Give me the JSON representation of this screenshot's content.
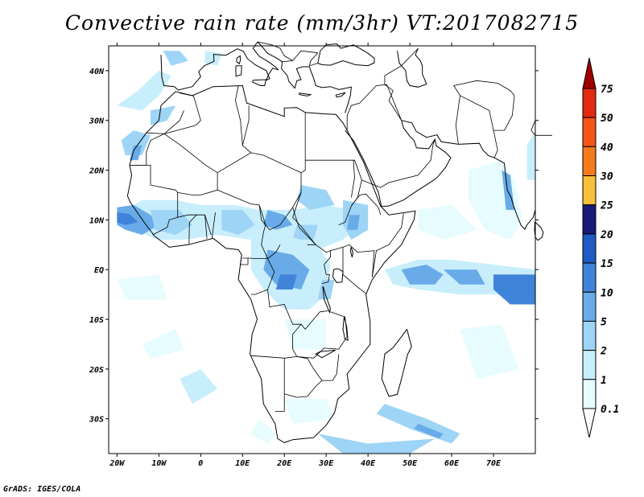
{
  "title": "Convective rain rate (mm/3hr) VT:2017082715",
  "footer": "GrADS: IGES/COLA",
  "map": {
    "lon_range": [
      -22,
      80
    ],
    "lat_range": [
      -37,
      45
    ],
    "lat_ticks": [
      {
        "value": 40,
        "label": "40N"
      },
      {
        "value": 30,
        "label": "30N"
      },
      {
        "value": 20,
        "label": "20N"
      },
      {
        "value": 10,
        "label": "10N"
      },
      {
        "value": 0,
        "label": "EQ"
      },
      {
        "value": -10,
        "label": "10S"
      },
      {
        "value": -20,
        "label": "20S"
      },
      {
        "value": -30,
        "label": "30S"
      }
    ],
    "lon_ticks": [
      {
        "value": -20,
        "label": "20W"
      },
      {
        "value": -10,
        "label": "10W"
      },
      {
        "value": 0,
        "label": "0"
      },
      {
        "value": 10,
        "label": "10E"
      },
      {
        "value": 20,
        "label": "20E"
      },
      {
        "value": 30,
        "label": "30E"
      },
      {
        "value": 40,
        "label": "40E"
      },
      {
        "value": 50,
        "label": "50E"
      },
      {
        "value": 60,
        "label": "60E"
      },
      {
        "value": 70,
        "label": "70E"
      }
    ]
  },
  "colorbar": {
    "levels": [
      {
        "label": "0.1",
        "color": "#e6fcff"
      },
      {
        "label": "1",
        "color": "#c8eefc"
      },
      {
        "label": "2",
        "color": "#9ed4f5"
      },
      {
        "label": "5",
        "color": "#68abe8"
      },
      {
        "label": "10",
        "color": "#3f84d8"
      },
      {
        "label": "15",
        "color": "#1e5cc4"
      },
      {
        "label": "20",
        "color": "#1a1a78"
      },
      {
        "label": "25",
        "color": "#f7c03a"
      },
      {
        "label": "30",
        "color": "#f47b1e"
      },
      {
        "label": "40",
        "color": "#f55616"
      },
      {
        "label": "50",
        "color": "#e32a10"
      },
      {
        "label": "75",
        "color": "#c4100a"
      }
    ],
    "top_arrow_color": "#a00000",
    "bottom_arrow_color": "#ffffff"
  }
}
